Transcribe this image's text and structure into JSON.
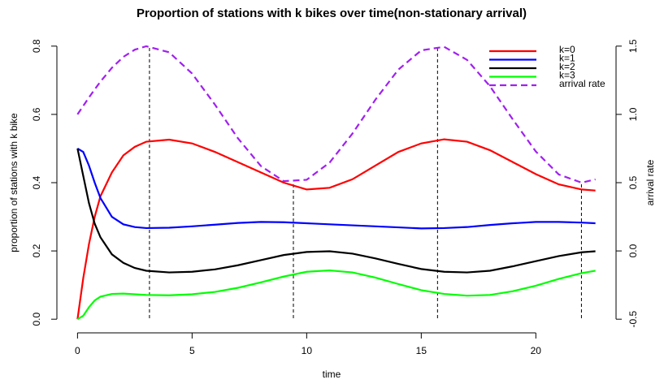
{
  "chart_data": {
    "type": "line",
    "title": "Proportion of stations with k bikes over time(non-stationary arrival)",
    "xlabel": "time",
    "ylabel": "proportion of stations with k bike",
    "y2label": "arrival rate",
    "x": [
      0,
      0.25,
      0.5,
      0.75,
      1,
      1.5,
      2,
      2.5,
      3,
      4,
      5,
      6,
      7,
      8,
      9,
      10,
      11,
      12,
      13,
      14,
      15,
      16,
      17,
      18,
      19,
      20,
      21,
      22,
      22.6
    ],
    "series": [
      {
        "name": "k=0",
        "color": "#ff0000",
        "values": [
          0,
          0.12,
          0.22,
          0.3,
          0.36,
          0.43,
          0.48,
          0.505,
          0.52,
          0.526,
          0.515,
          0.49,
          0.46,
          0.43,
          0.4,
          0.38,
          0.385,
          0.41,
          0.45,
          0.49,
          0.515,
          0.527,
          0.52,
          0.495,
          0.46,
          0.425,
          0.395,
          0.38,
          0.377
        ]
      },
      {
        "name": "k=1",
        "color": "#0000ff",
        "values": [
          0.5,
          0.49,
          0.45,
          0.4,
          0.355,
          0.3,
          0.278,
          0.27,
          0.267,
          0.268,
          0.272,
          0.277,
          0.282,
          0.285,
          0.284,
          0.281,
          0.278,
          0.275,
          0.272,
          0.269,
          0.266,
          0.267,
          0.27,
          0.276,
          0.281,
          0.285,
          0.285,
          0.283,
          0.281
        ]
      },
      {
        "name": "k=2",
        "color": "#000000",
        "values": [
          0.5,
          0.42,
          0.34,
          0.28,
          0.24,
          0.19,
          0.165,
          0.15,
          0.142,
          0.137,
          0.139,
          0.146,
          0.158,
          0.173,
          0.188,
          0.197,
          0.199,
          0.192,
          0.178,
          0.162,
          0.147,
          0.139,
          0.137,
          0.142,
          0.155,
          0.17,
          0.185,
          0.196,
          0.199
        ]
      },
      {
        "name": "k=3",
        "color": "#00ff00",
        "values": [
          0,
          0.01,
          0.035,
          0.055,
          0.066,
          0.074,
          0.075,
          0.073,
          0.071,
          0.07,
          0.073,
          0.08,
          0.092,
          0.108,
          0.125,
          0.139,
          0.143,
          0.137,
          0.122,
          0.103,
          0.085,
          0.074,
          0.069,
          0.071,
          0.082,
          0.098,
          0.118,
          0.135,
          0.142
        ]
      },
      {
        "name": "arrival rate",
        "color": "#a020f0",
        "dashed": true,
        "axis": "y2",
        "values": [
          1.0,
          1.062,
          1.124,
          1.183,
          1.24,
          1.341,
          1.421,
          1.474,
          1.499,
          1.455,
          1.299,
          1.071,
          0.825,
          0.622,
          0.511,
          0.521,
          0.647,
          0.86,
          1.108,
          1.328,
          1.469,
          1.495,
          1.399,
          1.206,
          0.962,
          0.728,
          0.56,
          0.5,
          0.524
        ]
      }
    ],
    "vlines": {
      "x": [
        3.14,
        9.42,
        15.71,
        21.99
      ],
      "y": [
        1.5,
        0.5,
        1.5,
        0.5
      ],
      "axis": "y2"
    },
    "xlim": [
      -0.9,
      23.5
    ],
    "xticks": [
      0,
      5,
      10,
      15,
      20
    ],
    "ylim": [
      -0.04,
      0.84
    ],
    "yticks": [
      {
        "value": 0,
        "label": "0.0"
      },
      0.2,
      0.4,
      0.6,
      0.8
    ],
    "y2lim": [
      -0.6,
      1.6
    ],
    "y2ticks": [
      -0.5,
      {
        "value": 0,
        "label": "0.0"
      },
      0.5,
      {
        "value": 1,
        "label": "1.0"
      },
      1.5
    ],
    "legend": "top-right"
  }
}
